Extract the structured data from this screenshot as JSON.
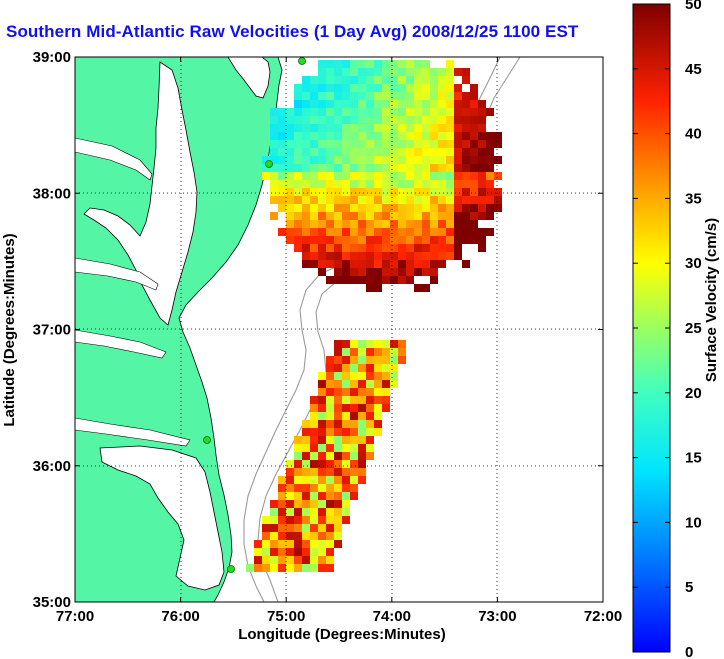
{
  "title": "Southern Mid-Atlantic Raw Velocities (1 Day Avg) 2008/12/25 1100 EST",
  "map": {
    "xlabel": "Longitude (Degrees:Minutes)",
    "ylabel": "Latitude (Degrees:Minutes)",
    "x_ticks": [
      "77:00",
      "76:00",
      "75:00",
      "74:00",
      "73:00",
      "72:00"
    ],
    "y_ticks": [
      "39:00",
      "38:00",
      "37:00",
      "36:00",
      "35:00"
    ],
    "lon_range": [
      -77,
      -72
    ],
    "lat_range": [
      35,
      39
    ],
    "grid": "dotted",
    "land_color": "#55f5a6",
    "bathymetry_color": "#9a9a9a"
  },
  "colorbar": {
    "label": "Surface Velocity (cm/s)",
    "ticks": [
      "50",
      "45",
      "40",
      "35",
      "30",
      "25",
      "20",
      "15",
      "10",
      "5",
      "0"
    ],
    "range": [
      0,
      50
    ],
    "colormap": "jet"
  }
}
